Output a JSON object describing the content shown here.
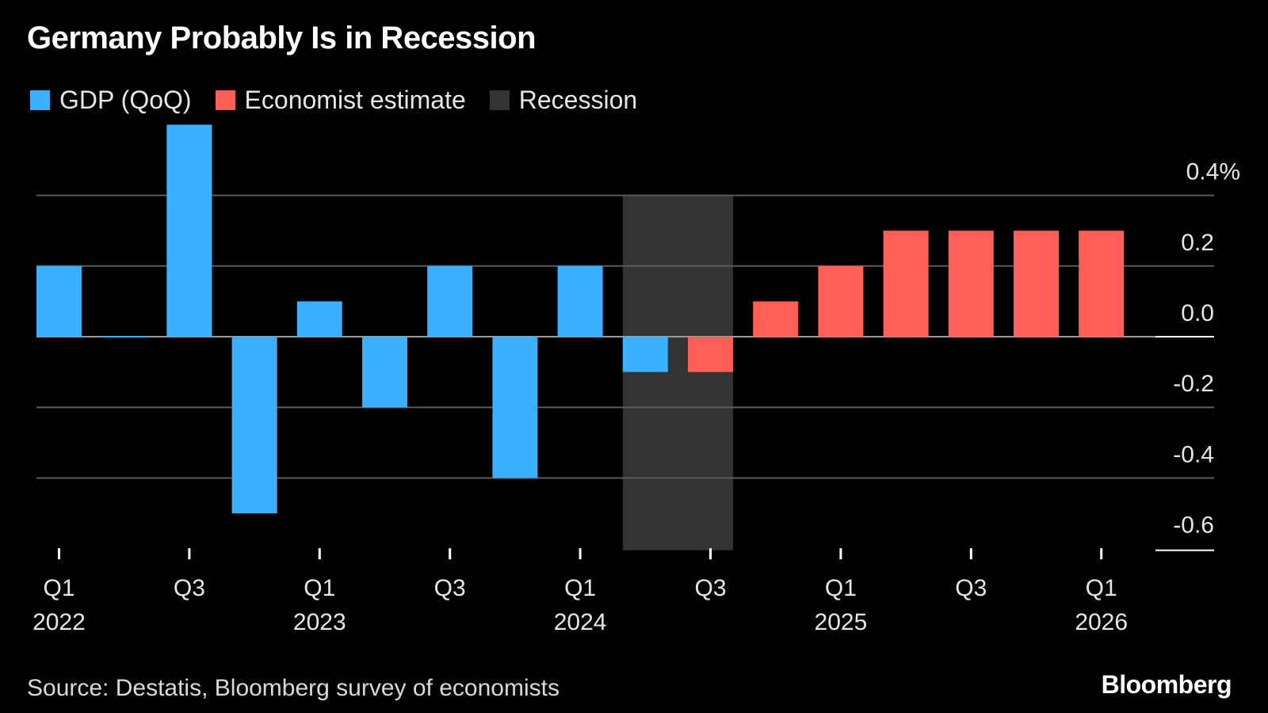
{
  "chart_data": {
    "type": "bar",
    "title": "Germany Probably Is in Recession",
    "source": "Source: Destatis, Bloomberg survey of economists",
    "brand": "Bloomberg",
    "legend": [
      {
        "label": "GDP (QoQ)",
        "color": "#3AB0FF"
      },
      {
        "label": "Economist estimate",
        "color": "#FF5F57"
      },
      {
        "label": "Recession",
        "color": "#333333"
      }
    ],
    "categories": [
      "Q1 2022",
      "Q2 2022",
      "Q3 2022",
      "Q4 2022",
      "Q1 2023",
      "Q2 2023",
      "Q3 2023",
      "Q4 2023",
      "Q1 2024",
      "Q2 2024",
      "Q3 2024",
      "Q4 2024",
      "Q1 2025",
      "Q2 2025",
      "Q3 2025",
      "Q4 2025",
      "Q1 2026"
    ],
    "series": [
      {
        "name": "GDP (QoQ)",
        "color": "#3AB0FF",
        "values": [
          0.2,
          0.0,
          0.6,
          -0.5,
          0.1,
          -0.2,
          0.2,
          -0.4,
          0.2,
          -0.1,
          null,
          null,
          null,
          null,
          null,
          null,
          null
        ]
      },
      {
        "name": "Economist estimate",
        "color": "#FF5F57",
        "values": [
          null,
          null,
          null,
          null,
          null,
          null,
          null,
          null,
          null,
          null,
          -0.1,
          0.1,
          0.2,
          0.3,
          0.3,
          0.3,
          0.3
        ]
      }
    ],
    "recession": {
      "label": "Recession",
      "from": "Q2 2024",
      "to": "Q3 2024",
      "color": "#333333"
    },
    "x_ticks": [
      {
        "index": 0,
        "quarter": "Q1",
        "year": "2022"
      },
      {
        "index": 2,
        "quarter": "Q3",
        "year": ""
      },
      {
        "index": 4,
        "quarter": "Q1",
        "year": "2023"
      },
      {
        "index": 6,
        "quarter": "Q3",
        "year": ""
      },
      {
        "index": 8,
        "quarter": "Q1",
        "year": "2024"
      },
      {
        "index": 10,
        "quarter": "Q3",
        "year": ""
      },
      {
        "index": 12,
        "quarter": "Q1",
        "year": "2025"
      },
      {
        "index": 14,
        "quarter": "Q3",
        "year": ""
      },
      {
        "index": 16,
        "quarter": "Q1",
        "year": "2026"
      }
    ],
    "y_ticks": [
      {
        "value": 0.4,
        "label": "0.4%"
      },
      {
        "value": 0.2,
        "label": "0.2"
      },
      {
        "value": 0.0,
        "label": "0.0"
      },
      {
        "value": -0.2,
        "label": "-0.2"
      },
      {
        "value": -0.4,
        "label": "-0.4"
      },
      {
        "value": -0.6,
        "label": "-0.6"
      }
    ],
    "ylim": [
      -0.6,
      0.6
    ],
    "y_axis_position": "right",
    "grid": true
  }
}
